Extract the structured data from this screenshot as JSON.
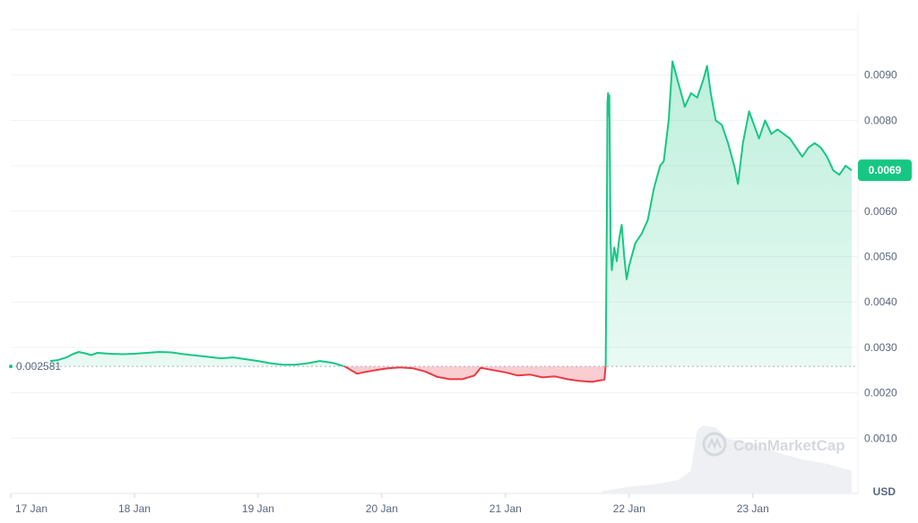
{
  "chart_data": {
    "type": "area",
    "currency_label": "USD",
    "watermark": "CoinMarketCap",
    "reference_value": 0.002581,
    "reference_label": "0.002581",
    "current_value": 0.0069,
    "current_label": "0.0069",
    "ylim": [
      0,
      0.01
    ],
    "y_ticks": [
      {
        "value": 0.001,
        "label": "0.0010"
      },
      {
        "value": 0.002,
        "label": "0.0020"
      },
      {
        "value": 0.003,
        "label": "0.0030"
      },
      {
        "value": 0.004,
        "label": "0.0040"
      },
      {
        "value": 0.005,
        "label": "0.0050"
      },
      {
        "value": 0.006,
        "label": "0.0060"
      },
      {
        "value": 0.008,
        "label": "0.0080"
      },
      {
        "value": 0.009,
        "label": "0.0090"
      }
    ],
    "x_ticks": [
      {
        "day": 17,
        "label": "17 Jan"
      },
      {
        "day": 18,
        "label": "18 Jan"
      },
      {
        "day": 19,
        "label": "19 Jan"
      },
      {
        "day": 20,
        "label": "20 Jan"
      },
      {
        "day": 21,
        "label": "21 Jan"
      },
      {
        "day": 22,
        "label": "22 Jan"
      },
      {
        "day": 23,
        "label": "23 Jan"
      }
    ],
    "xlim": [
      17,
      23.85
    ],
    "colors": {
      "up": "#16c784",
      "down": "#ea3943",
      "up_fill": "#16c784",
      "down_fill": "#ea3943",
      "grid": "#eff2f5",
      "text": "#58667e"
    },
    "series": [
      {
        "points": [
          [
            17.32,
            0.0027
          ],
          [
            17.38,
            0.00272
          ],
          [
            17.45,
            0.00278
          ],
          [
            17.5,
            0.00285
          ],
          [
            17.55,
            0.0029
          ],
          [
            17.6,
            0.00287
          ],
          [
            17.65,
            0.00283
          ],
          [
            17.7,
            0.00288
          ],
          [
            17.8,
            0.00286
          ],
          [
            17.9,
            0.00285
          ],
          [
            18.0,
            0.00286
          ],
          [
            18.1,
            0.00288
          ],
          [
            18.2,
            0.0029
          ],
          [
            18.3,
            0.00289
          ],
          [
            18.4,
            0.00285
          ],
          [
            18.5,
            0.00282
          ],
          [
            18.6,
            0.00279
          ],
          [
            18.7,
            0.00276
          ],
          [
            18.8,
            0.00278
          ],
          [
            18.9,
            0.00274
          ],
          [
            19.0,
            0.0027
          ],
          [
            19.1,
            0.00265
          ],
          [
            19.2,
            0.00262
          ],
          [
            19.3,
            0.00262
          ],
          [
            19.4,
            0.00265
          ],
          [
            19.5,
            0.0027
          ],
          [
            19.6,
            0.00266
          ],
          [
            19.7,
            0.00258
          ],
          [
            19.8,
            0.00242
          ],
          [
            19.85,
            0.00245
          ],
          [
            19.95,
            0.0025
          ],
          [
            20.05,
            0.00254
          ],
          [
            20.15,
            0.00256
          ],
          [
            20.25,
            0.00254
          ],
          [
            20.35,
            0.00247
          ],
          [
            20.45,
            0.00235
          ],
          [
            20.55,
            0.0023
          ],
          [
            20.65,
            0.0023
          ],
          [
            20.75,
            0.00238
          ],
          [
            20.8,
            0.00255
          ],
          [
            20.9,
            0.0025
          ],
          [
            21.0,
            0.00245
          ],
          [
            21.1,
            0.00238
          ],
          [
            21.2,
            0.0024
          ],
          [
            21.3,
            0.00234
          ],
          [
            21.4,
            0.00236
          ],
          [
            21.5,
            0.0023
          ],
          [
            21.6,
            0.00226
          ],
          [
            21.7,
            0.00224
          ],
          [
            21.8,
            0.00229
          ],
          [
            21.81,
            0.0026
          ],
          [
            21.82,
            0.0058
          ],
          [
            21.825,
            0.0084
          ],
          [
            21.83,
            0.0086
          ],
          [
            21.835,
            0.0081
          ],
          [
            21.84,
            0.00855
          ],
          [
            21.85,
            0.0053
          ],
          [
            21.86,
            0.0047
          ],
          [
            21.88,
            0.0052
          ],
          [
            21.9,
            0.0049
          ],
          [
            21.92,
            0.0054
          ],
          [
            21.94,
            0.0057
          ],
          [
            21.96,
            0.005
          ],
          [
            21.98,
            0.0045
          ],
          [
            22.0,
            0.0048
          ],
          [
            22.05,
            0.0053
          ],
          [
            22.1,
            0.0055
          ],
          [
            22.15,
            0.0058
          ],
          [
            22.2,
            0.0065
          ],
          [
            22.25,
            0.007
          ],
          [
            22.28,
            0.0071
          ],
          [
            22.32,
            0.008
          ],
          [
            22.35,
            0.0093
          ],
          [
            22.4,
            0.0088
          ],
          [
            22.45,
            0.0083
          ],
          [
            22.5,
            0.0086
          ],
          [
            22.55,
            0.0085
          ],
          [
            22.6,
            0.0089
          ],
          [
            22.63,
            0.0092
          ],
          [
            22.66,
            0.0086
          ],
          [
            22.7,
            0.008
          ],
          [
            22.75,
            0.0079
          ],
          [
            22.8,
            0.0075
          ],
          [
            22.85,
            0.007
          ],
          [
            22.88,
            0.0066
          ],
          [
            22.92,
            0.0075
          ],
          [
            22.97,
            0.0082
          ],
          [
            23.05,
            0.0076
          ],
          [
            23.1,
            0.008
          ],
          [
            23.15,
            0.0077
          ],
          [
            23.2,
            0.0078
          ],
          [
            23.3,
            0.0076
          ],
          [
            23.4,
            0.0072
          ],
          [
            23.45,
            0.0074
          ],
          [
            23.5,
            0.0075
          ],
          [
            23.55,
            0.0074
          ],
          [
            23.6,
            0.0072
          ],
          [
            23.65,
            0.0069
          ],
          [
            23.7,
            0.0068
          ],
          [
            23.75,
            0.007
          ],
          [
            23.8,
            0.0069
          ]
        ]
      }
    ],
    "volume": {
      "points": [
        [
          21.78,
          5e-05
        ],
        [
          21.9,
          0.0001
        ],
        [
          22.0,
          0.00015
        ],
        [
          22.2,
          0.0002
        ],
        [
          22.4,
          0.0003
        ],
        [
          22.5,
          0.0005
        ],
        [
          22.55,
          0.0014
        ],
        [
          22.6,
          0.0015
        ],
        [
          22.7,
          0.00145
        ],
        [
          22.8,
          0.0012
        ],
        [
          23.0,
          0.0011
        ],
        [
          23.2,
          0.0009
        ],
        [
          23.4,
          0.00075
        ],
        [
          23.6,
          0.00065
        ],
        [
          23.8,
          0.0005
        ]
      ]
    }
  }
}
